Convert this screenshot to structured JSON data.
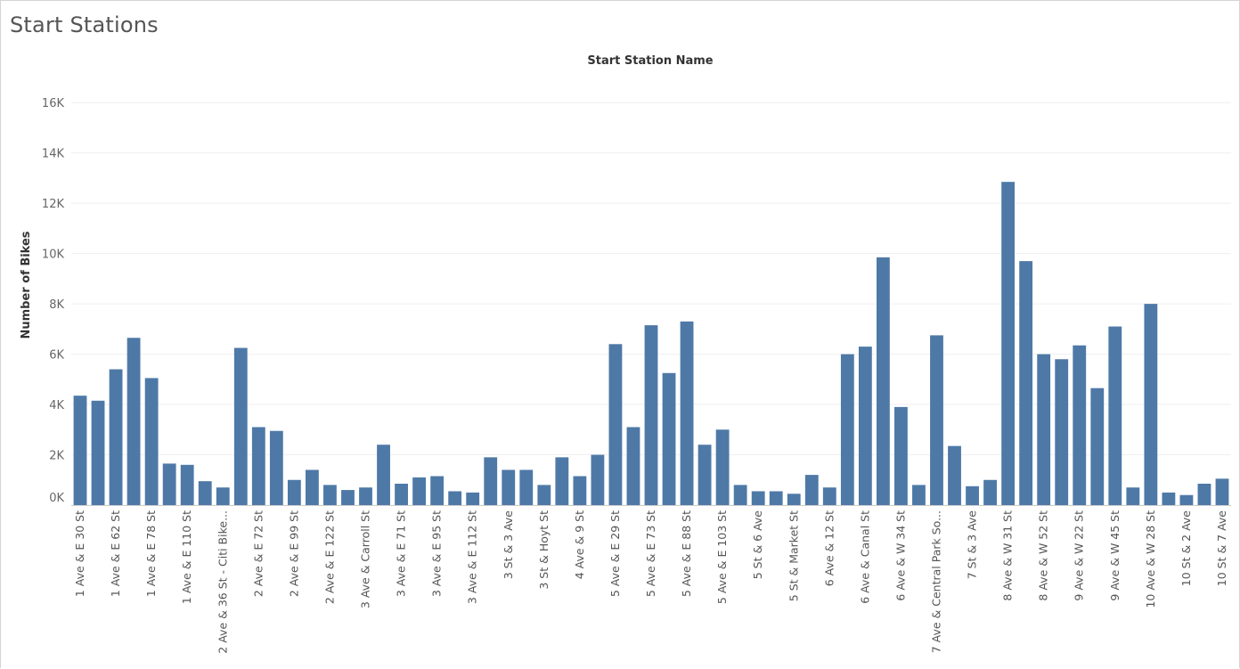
{
  "page": {
    "title": "Start Stations"
  },
  "chart_data": {
    "type": "bar",
    "title": "",
    "header": "Start Station Name",
    "xlabel": "",
    "ylabel": "Number of Bikes",
    "ylim": [
      0,
      17000
    ],
    "yticks": [
      0,
      2000,
      4000,
      6000,
      8000,
      10000,
      12000,
      14000,
      16000
    ],
    "ytick_labels": [
      "0K",
      "2K",
      "4K",
      "6K",
      "8K",
      "10K",
      "12K",
      "14K",
      "16K"
    ],
    "grid": true,
    "bar_color": "#4e79a7",
    "categories": [
      "1 Ave & E 30 St",
      "",
      "1 Ave & E 62 St",
      "",
      "1 Ave & E 78 St",
      "",
      "1 Ave & E 110 St",
      "",
      "2 Ave & 36 St - Citi Bike...",
      "",
      "2 Ave & E 72 St",
      "",
      "2 Ave & E 99 St",
      "",
      "2 Ave & E 122 St",
      "",
      "3 Ave & Carroll St",
      "",
      "3 Ave & E 71 St",
      "",
      "3 Ave & E 95 St",
      "",
      "3 Ave & E 112 St",
      "",
      "3 St & 3 Ave",
      "",
      "3 St & Hoyt St",
      "",
      "4 Ave & 9 St",
      "",
      "5 Ave & E 29 St",
      "",
      "5 Ave & E 73 St",
      "",
      "5 Ave & E 88 St",
      "",
      "5 Ave & E 103 St",
      "",
      "5 St & 6 Ave",
      "",
      "5 St & Market St",
      "",
      "6 Ave & 12 St",
      "",
      "6 Ave & Canal St",
      "",
      "6 Ave & W 34 St",
      "",
      "7 Ave & Central Park So...",
      "",
      "7 St & 3 Ave",
      "",
      "8 Ave & W 31 St",
      "",
      "8 Ave & W 52 St",
      "",
      "9 Ave & W 22 St",
      "",
      "9 Ave & W 45 St",
      "",
      "10 Ave & W 28 St",
      "",
      "10 St & 2 Ave",
      "",
      "10 St & 7 Ave"
    ],
    "values": [
      4350,
      4150,
      5400,
      6650,
      5050,
      1650,
      1600,
      950,
      700,
      6250,
      3100,
      2950,
      1000,
      1400,
      800,
      600,
      700,
      2400,
      850,
      1100,
      1150,
      550,
      500,
      1900,
      1400,
      1400,
      800,
      1900,
      1150,
      2000,
      6400,
      3100,
      7150,
      5250,
      7300,
      2400,
      3000,
      800,
      550,
      550,
      450,
      1200,
      700,
      6000,
      6300,
      9850,
      3900,
      800,
      6750,
      2350,
      750,
      1000,
      12850,
      9700,
      6000,
      5800,
      6350,
      4650,
      7100,
      700,
      8000,
      500,
      400,
      850,
      1050
    ]
  }
}
